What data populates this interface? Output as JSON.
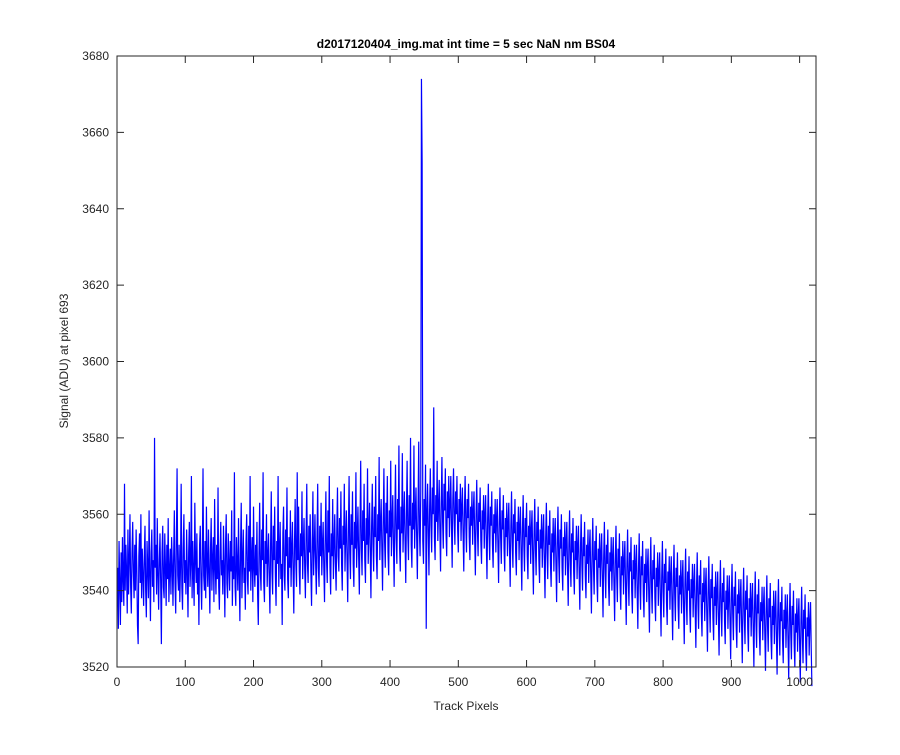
{
  "chart_data": {
    "type": "line",
    "title": "d2017120404_img.mat int time = 5 sec  NaN nm BS04",
    "xlabel": "Track Pixels",
    "ylabel": "Signal (ADU) at pixel 693",
    "xlim": [
      0,
      1024
    ],
    "ylim": [
      3520,
      3680
    ],
    "x_ticks": [
      "0",
      "100",
      "200",
      "300",
      "400",
      "500",
      "600",
      "700",
      "800",
      "900",
      "1000"
    ],
    "y_ticks": [
      "3520",
      "3540",
      "3560",
      "3580",
      "3600",
      "3620",
      "3640",
      "3660",
      "3680"
    ],
    "grid": false,
    "legend": "none",
    "series": [
      {
        "color": "#0000ff",
        "x_start": 1,
        "x_step": 1,
        "values": [
          3546,
          3530,
          3553,
          3542,
          3531,
          3550,
          3537,
          3554,
          3543,
          3536,
          3568,
          3540,
          3552,
          3545,
          3534,
          3556,
          3539,
          3548,
          3560,
          3541,
          3534,
          3550,
          3558,
          3545,
          3538,
          3552,
          3540,
          3556,
          3546,
          3531,
          3526,
          3549,
          3555,
          3542,
          3560,
          3538,
          3551,
          3544,
          3536,
          3549,
          3557,
          3540,
          3533,
          3553,
          3546,
          3538,
          3561,
          3544,
          3532,
          3550,
          3556,
          3541,
          3548,
          3537,
          3580,
          3546,
          3552,
          3539,
          3559,
          3544,
          3535,
          3548,
          3555,
          3542,
          3526,
          3550,
          3557,
          3541,
          3538,
          3555,
          3546,
          3536,
          3552,
          3543,
          3559,
          3537,
          3545,
          3551,
          3539,
          3554,
          3547,
          3536,
          3549,
          3561,
          3542,
          3534,
          3553,
          3572,
          3544,
          3540,
          3552,
          3537,
          3546,
          3568,
          3541,
          3535,
          3551,
          3560,
          3542,
          3548,
          3539,
          3556,
          3545,
          3533,
          3550,
          3558,
          3541,
          3547,
          3570,
          3538,
          3553,
          3544,
          3536,
          3563,
          3548,
          3542,
          3555,
          3539,
          3546,
          3531,
          3552,
          3557,
          3543,
          3535,
          3549,
          3572,
          3544,
          3540,
          3553,
          3538,
          3562,
          3547,
          3541,
          3556,
          3545,
          3534,
          3551,
          3559,
          3540,
          3548,
          3554,
          3537,
          3564,
          3546,
          3539,
          3552,
          3543,
          3567,
          3541,
          3535,
          3550,
          3558,
          3544,
          3548,
          3539,
          3557,
          3546,
          3533,
          3552,
          3560,
          3542,
          3538,
          3555,
          3547,
          3540,
          3553,
          3545,
          3561,
          3536,
          3549,
          3543,
          3571,
          3541,
          3536,
          3554,
          3547,
          3540,
          3559,
          3544,
          3532,
          3551,
          3563,
          3538,
          3548,
          3556,
          3542,
          3546,
          3535,
          3553,
          3560,
          3543,
          3539,
          3557,
          3545,
          3570,
          3540,
          3548,
          3554,
          3537,
          3562,
          3546,
          3541,
          3552,
          3544,
          3558,
          3539,
          3531,
          3550,
          3563,
          3545,
          3540,
          3556,
          3548,
          3571,
          3542,
          3537,
          3553,
          3547,
          3560,
          3541,
          3549,
          3555,
          3543,
          3534,
          3552,
          3566,
          3545,
          3539,
          3557,
          3548,
          3562,
          3544,
          3536,
          3553,
          3547,
          3570,
          3541,
          3550,
          3558,
          3543,
          3547,
          3531,
          3555,
          3562,
          3544,
          3540,
          3556,
          3549,
          3567,
          3543,
          3538,
          3554,
          3546,
          3561,
          3541,
          3551,
          3558,
          3545,
          3534,
          3552,
          3564,
          3547,
          3541,
          3571,
          3548,
          3562,
          3545,
          3539,
          3555,
          3549,
          3566,
          3543,
          3552,
          3559,
          3546,
          3538,
          3554,
          3568,
          3547,
          3542,
          3557,
          3550,
          3560,
          3545,
          3536,
          3553,
          3566,
          3544,
          3551,
          3560,
          3547,
          3539,
          3554,
          3568,
          3546,
          3541,
          3557,
          3549,
          3563,
          3544,
          3552,
          3558,
          3546,
          3537,
          3554,
          3566,
          3548,
          3542,
          3561,
          3550,
          3570,
          3546,
          3539,
          3555,
          3549,
          3564,
          3543,
          3552,
          3560,
          3547,
          3540,
          3556,
          3567,
          3549,
          3545,
          3559,
          3551,
          3566,
          3547,
          3540,
          3557,
          3552,
          3568,
          3545,
          3554,
          3561,
          3548,
          3537,
          3556,
          3570,
          3550,
          3543,
          3560,
          3552,
          3566,
          3547,
          3541,
          3558,
          3551,
          3571,
          3546,
          3554,
          3562,
          3549,
          3539,
          3557,
          3574,
          3551,
          3544,
          3561,
          3553,
          3568,
          3548,
          3542,
          3559,
          3552,
          3572,
          3547,
          3556,
          3563,
          3550,
          3538,
          3557,
          3568,
          3552,
          3545,
          3562,
          3554,
          3570,
          3549,
          3543,
          3560,
          3553,
          3575,
          3548,
          3557,
          3564,
          3551,
          3540,
          3558,
          3572,
          3553,
          3546,
          3563,
          3555,
          3570,
          3550,
          3544,
          3561,
          3554,
          3574,
          3549,
          3558,
          3565,
          3552,
          3541,
          3559,
          3573,
          3554,
          3547,
          3564,
          3556,
          3578,
          3551,
          3545,
          3562,
          3555,
          3576,
          3550,
          3559,
          3566,
          3553,
          3542,
          3560,
          3574,
          3555,
          3548,
          3565,
          3557,
          3580,
          3552,
          3546,
          3563,
          3556,
          3578,
          3551,
          3560,
          3567,
          3554,
          3543,
          3561,
          3579,
          3556,
          3549,
          3566,
          3674,
          3652,
          3553,
          3547,
          3564,
          3557,
          3573,
          3530,
          3561,
          3568,
          3555,
          3544,
          3562,
          3572,
          3557,
          3550,
          3567,
          3560,
          3588,
          3554,
          3548,
          3565,
          3558,
          3574,
          3553,
          3562,
          3569,
          3556,
          3545,
          3563,
          3575,
          3558,
          3551,
          3568,
          3561,
          3572,
          3555,
          3549,
          3566,
          3559,
          3570,
          3554,
          3563,
          3570,
          3557,
          3546,
          3564,
          3572,
          3559,
          3552,
          3566,
          3560,
          3570,
          3556,
          3550,
          3564,
          3558,
          3568,
          3553,
          3562,
          3567,
          3555,
          3545,
          3561,
          3570,
          3557,
          3550,
          3564,
          3559,
          3568,
          3554,
          3548,
          3562,
          3557,
          3566,
          3552,
          3561,
          3566,
          3554,
          3544,
          3560,
          3569,
          3556,
          3549,
          3563,
          3558,
          3567,
          3553,
          3547,
          3561,
          3556,
          3565,
          3551,
          3560,
          3565,
          3553,
          3543,
          3559,
          3568,
          3555,
          3548,
          3562,
          3557,
          3566,
          3552,
          3546,
          3560,
          3555,
          3564,
          3550,
          3559,
          3564,
          3552,
          3542,
          3558,
          3567,
          3554,
          3547,
          3561,
          3556,
          3565,
          3551,
          3545,
          3559,
          3554,
          3563,
          3549,
          3558,
          3563,
          3551,
          3541,
          3557,
          3566,
          3553,
          3546,
          3560,
          3555,
          3564,
          3550,
          3544,
          3558,
          3553,
          3562,
          3548,
          3557,
          3562,
          3550,
          3540,
          3556,
          3565,
          3552,
          3545,
          3559,
          3554,
          3563,
          3549,
          3543,
          3557,
          3552,
          3561,
          3547,
          3556,
          3561,
          3549,
          3539,
          3555,
          3564,
          3551,
          3544,
          3558,
          3553,
          3562,
          3548,
          3542,
          3556,
          3551,
          3560,
          3546,
          3555,
          3560,
          3548,
          3538,
          3554,
          3563,
          3550,
          3543,
          3557,
          3552,
          3561,
          3547,
          3541,
          3555,
          3550,
          3559,
          3545,
          3554,
          3559,
          3547,
          3537,
          3553,
          3562,
          3549,
          3542,
          3556,
          3551,
          3560,
          3546,
          3540,
          3554,
          3549,
          3558,
          3544,
          3553,
          3558,
          3546,
          3536,
          3552,
          3561,
          3548,
          3541,
          3555,
          3550,
          3559,
          3545,
          3539,
          3553,
          3548,
          3557,
          3543,
          3552,
          3557,
          3545,
          3535,
          3551,
          3560,
          3547,
          3540,
          3554,
          3549,
          3558,
          3544,
          3538,
          3552,
          3547,
          3556,
          3542,
          3551,
          3556,
          3544,
          3534,
          3550,
          3559,
          3546,
          3539,
          3553,
          3548,
          3557,
          3543,
          3537,
          3551,
          3546,
          3555,
          3541,
          3550,
          3555,
          3543,
          3533,
          3549,
          3558,
          3545,
          3538,
          3552,
          3547,
          3556,
          3542,
          3536,
          3550,
          3545,
          3554,
          3540,
          3549,
          3554,
          3542,
          3532,
          3548,
          3557,
          3544,
          3537,
          3551,
          3546,
          3555,
          3541,
          3535,
          3549,
          3544,
          3553,
          3539,
          3548,
          3553,
          3541,
          3531,
          3547,
          3556,
          3543,
          3536,
          3550,
          3545,
          3554,
          3540,
          3534,
          3548,
          3543,
          3552,
          3538,
          3547,
          3552,
          3540,
          3530,
          3546,
          3555,
          3542,
          3535,
          3549,
          3544,
          3553,
          3539,
          3533,
          3547,
          3542,
          3551,
          3537,
          3546,
          3551,
          3539,
          3529,
          3545,
          3554,
          3541,
          3534,
          3548,
          3543,
          3552,
          3538,
          3532,
          3546,
          3541,
          3550,
          3536,
          3545,
          3550,
          3538,
          3528,
          3544,
          3553,
          3540,
          3533,
          3547,
          3542,
          3551,
          3537,
          3531,
          3545,
          3540,
          3549,
          3535,
          3544,
          3549,
          3537,
          3527,
          3543,
          3552,
          3539,
          3532,
          3546,
          3541,
          3550,
          3536,
          3530,
          3544,
          3539,
          3548,
          3534,
          3543,
          3548,
          3536,
          3526,
          3542,
          3551,
          3538,
          3531,
          3545,
          3540,
          3549,
          3535,
          3529,
          3543,
          3538,
          3547,
          3533,
          3542,
          3547,
          3535,
          3525,
          3541,
          3550,
          3537,
          3530,
          3544,
          3539,
          3548,
          3534,
          3528,
          3542,
          3537,
          3546,
          3532,
          3541,
          3546,
          3534,
          3524,
          3540,
          3549,
          3536,
          3529,
          3543,
          3538,
          3547,
          3533,
          3527,
          3541,
          3536,
          3545,
          3531,
          3540,
          3545,
          3533,
          3523,
          3539,
          3548,
          3535,
          3528,
          3542,
          3537,
          3546,
          3532,
          3526,
          3540,
          3535,
          3544,
          3530,
          3539,
          3544,
          3532,
          3522,
          3538,
          3547,
          3534,
          3527,
          3541,
          3536,
          3545,
          3531,
          3525,
          3539,
          3534,
          3543,
          3529,
          3538,
          3543,
          3531,
          3521,
          3537,
          3546,
          3533,
          3526,
          3540,
          3535,
          3544,
          3530,
          3524,
          3538,
          3533,
          3542,
          3528,
          3537,
          3542,
          3530,
          3520,
          3536,
          3545,
          3532,
          3525,
          3539,
          3534,
          3543,
          3529,
          3523,
          3537,
          3532,
          3541,
          3527,
          3536,
          3541,
          3529,
          3519,
          3535,
          3544,
          3531,
          3524,
          3538,
          3533,
          3542,
          3528,
          3522,
          3536,
          3531,
          3540,
          3526,
          3535,
          3540,
          3528,
          3518,
          3534,
          3543,
          3530,
          3523,
          3537,
          3532,
          3541,
          3527,
          3521,
          3535,
          3530,
          3539,
          3525,
          3534,
          3539,
          3527,
          3517,
          3533,
          3542,
          3529,
          3522,
          3536,
          3531,
          3540,
          3526,
          3520,
          3534,
          3529,
          3538,
          3524,
          3533,
          3538,
          3526,
          3516,
          3532,
          3541,
          3528,
          3521,
          3535,
          3530,
          3539,
          3525,
          3519,
          3533,
          3528,
          3537,
          3523,
          3532,
          3537,
          3525,
          3515
        ]
      }
    ]
  }
}
